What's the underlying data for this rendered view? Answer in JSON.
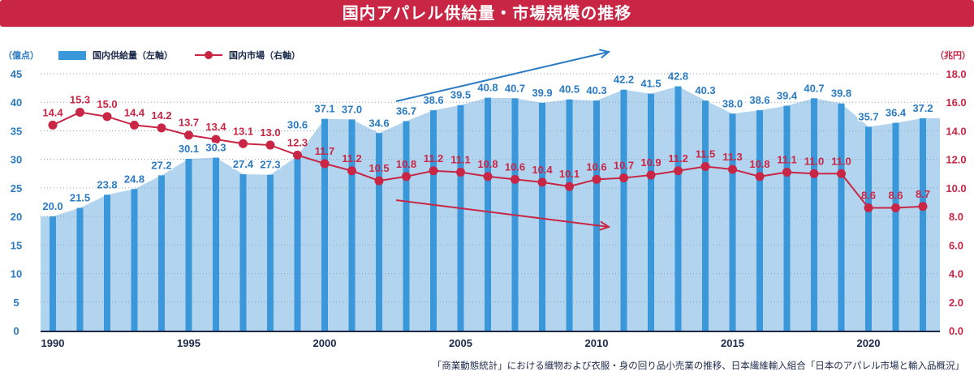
{
  "title": "国内アパレル供給量・市場規模の推移",
  "footnote": "「商業動態統計」における織物および衣服・身の回り品小売業の推移、日本繊維輸入組合「日本のアパレル市場と輸入品概況」",
  "colors": {
    "title_bg": "#c92645",
    "bar": "#3a97da",
    "area": "#b2d4ee",
    "line": "#c92645",
    "left_axis": "#2a7bc4",
    "right_axis": "#c92645"
  },
  "chart_data": {
    "type": "bar+line",
    "title": "国内アパレル供給量・市場規模の推移",
    "x": [
      1990,
      1991,
      1992,
      1993,
      1994,
      1995,
      1996,
      1997,
      1998,
      1999,
      2000,
      2001,
      2002,
      2003,
      2004,
      2005,
      2006,
      2007,
      2008,
      2009,
      2010,
      2011,
      2012,
      2013,
      2014,
      2015,
      2016,
      2017,
      2018,
      2019,
      2020,
      2021,
      2022
    ],
    "x_tick_labels": [
      "1990",
      "1995",
      "2000",
      "2005",
      "2010",
      "2015",
      "2020"
    ],
    "left_axis": {
      "unit": "（億点）",
      "ylim": [
        0,
        45
      ],
      "ticks": [
        "0",
        "5",
        "10",
        "15",
        "20",
        "25",
        "30",
        "35",
        "40",
        "45"
      ]
    },
    "right_axis": {
      "unit": "（兆円）",
      "ylim": [
        0,
        18
      ],
      "ticks": [
        "0.0",
        "2.0",
        "4.0",
        "6.0",
        "8.0",
        "10.0",
        "12.0",
        "14.0",
        "16.0",
        "18.0"
      ]
    },
    "grid": true,
    "legend_position": "top-left",
    "series": [
      {
        "name": "国内供給量（左軸）",
        "type": "bar",
        "axis": "left",
        "values": [
          20.0,
          21.5,
          23.8,
          24.8,
          27.2,
          30.1,
          30.3,
          27.4,
          27.3,
          30.6,
          37.1,
          37.0,
          34.6,
          36.7,
          38.6,
          39.5,
          40.8,
          40.7,
          39.9,
          40.5,
          40.3,
          42.2,
          41.5,
          42.8,
          40.3,
          38.0,
          38.6,
          39.4,
          40.7,
          39.8,
          35.7,
          36.4,
          37.2
        ]
      },
      {
        "name": "国内市場（右軸）",
        "type": "line",
        "axis": "right",
        "values": [
          14.4,
          15.3,
          15.0,
          14.4,
          14.2,
          13.7,
          13.4,
          13.1,
          13.0,
          12.3,
          11.7,
          11.2,
          10.5,
          10.8,
          11.2,
          11.1,
          10.8,
          10.6,
          10.4,
          10.1,
          10.6,
          10.7,
          10.9,
          11.2,
          11.5,
          11.3,
          10.8,
          11.1,
          11.0,
          11.0,
          8.6,
          8.6,
          8.7
        ]
      }
    ],
    "annotations": [
      "upward trend arrow (supply)",
      "downward trend arrow (market)"
    ]
  }
}
